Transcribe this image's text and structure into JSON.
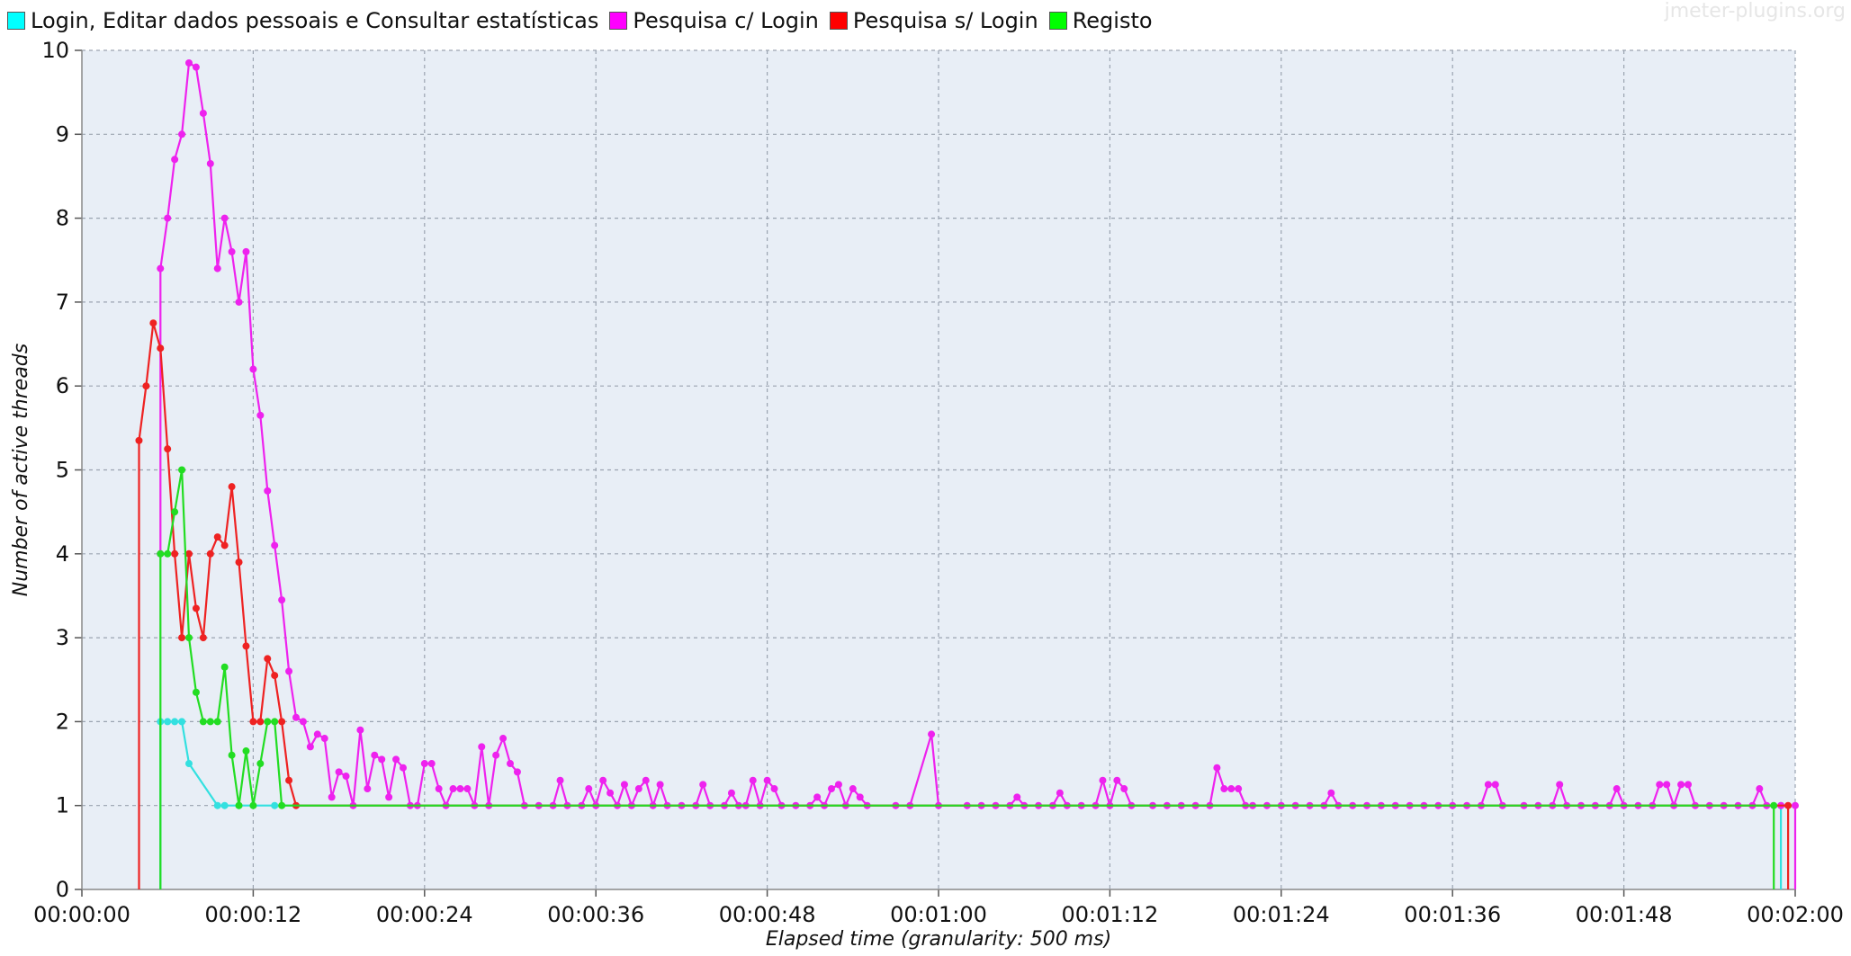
{
  "watermark": "jmeter-plugins.org",
  "colors": {
    "plot_background": "#e8eef6",
    "grid": "#9aa3b0",
    "axis": "#888888"
  },
  "chart_data": {
    "type": "line",
    "xlabel": "Elapsed time (granularity: 500 ms)",
    "ylabel": "Number of active threads",
    "xlim": [
      0,
      120
    ],
    "ylim": [
      0,
      10
    ],
    "x_unit": "seconds",
    "x_ticks": [
      0,
      12,
      24,
      36,
      48,
      60,
      72,
      84,
      96,
      108,
      120
    ],
    "x_tick_labels": [
      "00:00:00",
      "00:00:12",
      "00:00:24",
      "00:00:36",
      "00:00:48",
      "00:01:00",
      "00:01:12",
      "00:01:24",
      "00:01:36",
      "00:01:48",
      "00:02:00"
    ],
    "y_ticks": [
      0,
      1,
      2,
      3,
      4,
      5,
      6,
      7,
      8,
      9,
      10
    ],
    "grid": true,
    "legend_position": "top-left",
    "series": [
      {
        "name": "Login, Editar dados pessoais e Consultar estatísticas",
        "color": "#00ffff",
        "line_color": "#33e0e0",
        "points": [
          [
            5.5,
            0
          ],
          [
            5.5,
            2
          ],
          [
            6,
            2
          ],
          [
            6.5,
            2
          ],
          [
            7,
            2
          ],
          [
            7.5,
            1.5
          ],
          [
            9.5,
            1
          ],
          [
            10,
            1
          ],
          [
            11,
            1
          ],
          [
            13.5,
            1
          ],
          [
            119,
            1
          ],
          [
            119,
            0
          ]
        ]
      },
      {
        "name": "Pesquisa c/ Login",
        "color": "#ff00ff",
        "line_color": "#ee22ee",
        "points": [
          [
            5.5,
            4
          ],
          [
            5.5,
            7.4
          ],
          [
            6,
            8
          ],
          [
            6.5,
            8.7
          ],
          [
            7,
            9
          ],
          [
            7.5,
            9.85
          ],
          [
            8,
            9.8
          ],
          [
            8.5,
            9.25
          ],
          [
            9,
            8.65
          ],
          [
            9.5,
            7.4
          ],
          [
            10,
            8
          ],
          [
            10.5,
            7.6
          ],
          [
            11,
            7
          ],
          [
            11.5,
            7.6
          ],
          [
            12,
            6.2
          ],
          [
            12.5,
            5.65
          ],
          [
            13,
            4.75
          ],
          [
            13.5,
            4.1
          ],
          [
            14,
            3.45
          ],
          [
            14.5,
            2.6
          ],
          [
            15,
            2.05
          ],
          [
            15.5,
            2
          ],
          [
            16,
            1.7
          ],
          [
            16.5,
            1.85
          ],
          [
            17,
            1.8
          ],
          [
            17.5,
            1.1
          ],
          [
            18,
            1.4
          ],
          [
            18.5,
            1.35
          ],
          [
            19,
            1
          ],
          [
            19.5,
            1.9
          ],
          [
            20,
            1.2
          ],
          [
            20.5,
            1.6
          ],
          [
            21,
            1.55
          ],
          [
            21.5,
            1.1
          ],
          [
            22,
            1.55
          ],
          [
            22.5,
            1.45
          ],
          [
            23,
            1
          ],
          [
            23.5,
            1
          ],
          [
            24,
            1.5
          ],
          [
            24.5,
            1.5
          ],
          [
            25,
            1.2
          ],
          [
            25.5,
            1
          ],
          [
            26,
            1.2
          ],
          [
            26.5,
            1.2
          ],
          [
            27,
            1.2
          ],
          [
            27.5,
            1
          ],
          [
            28,
            1.7
          ],
          [
            28.5,
            1
          ],
          [
            29,
            1.6
          ],
          [
            29.5,
            1.8
          ],
          [
            30,
            1.5
          ],
          [
            30.5,
            1.4
          ],
          [
            31,
            1
          ],
          [
            32,
            1
          ],
          [
            33,
            1
          ],
          [
            33.5,
            1.3
          ],
          [
            34,
            1
          ],
          [
            35,
            1
          ],
          [
            35.5,
            1.2
          ],
          [
            36,
            1
          ],
          [
            36.5,
            1.3
          ],
          [
            37,
            1.15
          ],
          [
            37.5,
            1
          ],
          [
            38,
            1.25
          ],
          [
            38.5,
            1
          ],
          [
            39,
            1.2
          ],
          [
            39.5,
            1.3
          ],
          [
            40,
            1
          ],
          [
            40.5,
            1.25
          ],
          [
            41,
            1
          ],
          [
            42,
            1
          ],
          [
            43,
            1
          ],
          [
            43.5,
            1.25
          ],
          [
            44,
            1
          ],
          [
            45,
            1
          ],
          [
            45.5,
            1.15
          ],
          [
            46,
            1
          ],
          [
            46.5,
            1
          ],
          [
            47,
            1.3
          ],
          [
            47.5,
            1
          ],
          [
            48,
            1.3
          ],
          [
            48.5,
            1.2
          ],
          [
            49,
            1
          ],
          [
            50,
            1
          ],
          [
            51,
            1
          ],
          [
            51.5,
            1.1
          ],
          [
            52,
            1
          ],
          [
            52.5,
            1.2
          ],
          [
            53,
            1.25
          ],
          [
            53.5,
            1
          ],
          [
            54,
            1.2
          ],
          [
            54.5,
            1.1
          ],
          [
            55,
            1
          ],
          [
            57,
            1
          ],
          [
            58,
            1
          ],
          [
            59.5,
            1.85
          ],
          [
            60,
            1
          ],
          [
            62,
            1
          ],
          [
            63,
            1
          ],
          [
            64,
            1
          ],
          [
            65,
            1
          ],
          [
            65.5,
            1.1
          ],
          [
            66,
            1
          ],
          [
            67,
            1
          ],
          [
            68,
            1
          ],
          [
            68.5,
            1.15
          ],
          [
            69,
            1
          ],
          [
            70,
            1
          ],
          [
            71,
            1
          ],
          [
            71.5,
            1.3
          ],
          [
            72,
            1
          ],
          [
            72.5,
            1.3
          ],
          [
            73,
            1.2
          ],
          [
            73.5,
            1
          ],
          [
            75,
            1
          ],
          [
            76,
            1
          ],
          [
            77,
            1
          ],
          [
            78,
            1
          ],
          [
            79,
            1
          ],
          [
            79.5,
            1.45
          ],
          [
            80,
            1.2
          ],
          [
            80.5,
            1.2
          ],
          [
            81,
            1.2
          ],
          [
            81.5,
            1
          ],
          [
            82,
            1
          ],
          [
            83,
            1
          ],
          [
            84,
            1
          ],
          [
            85,
            1
          ],
          [
            86,
            1
          ],
          [
            87,
            1
          ],
          [
            87.5,
            1.15
          ],
          [
            88,
            1
          ],
          [
            89,
            1
          ],
          [
            90,
            1
          ],
          [
            91,
            1
          ],
          [
            92,
            1
          ],
          [
            93,
            1
          ],
          [
            94,
            1
          ],
          [
            95,
            1
          ],
          [
            96,
            1
          ],
          [
            97,
            1
          ],
          [
            98,
            1
          ],
          [
            98.5,
            1.25
          ],
          [
            99,
            1.25
          ],
          [
            99.5,
            1
          ],
          [
            101,
            1
          ],
          [
            102,
            1
          ],
          [
            103,
            1
          ],
          [
            103.5,
            1.25
          ],
          [
            104,
            1
          ],
          [
            105,
            1
          ],
          [
            106,
            1
          ],
          [
            107,
            1
          ],
          [
            107.5,
            1.2
          ],
          [
            108,
            1
          ],
          [
            109,
            1
          ],
          [
            110,
            1
          ],
          [
            110.5,
            1.25
          ],
          [
            111,
            1.25
          ],
          [
            111.5,
            1
          ],
          [
            112,
            1.25
          ],
          [
            112.5,
            1.25
          ],
          [
            113,
            1
          ],
          [
            114,
            1
          ],
          [
            115,
            1
          ],
          [
            116,
            1
          ],
          [
            117,
            1
          ],
          [
            117.5,
            1.2
          ],
          [
            118,
            1
          ],
          [
            119,
            1
          ],
          [
            120,
            1
          ],
          [
            120,
            0
          ]
        ]
      },
      {
        "name": "Pesquisa s/ Login",
        "color": "#ff0000",
        "line_color": "#ee2222",
        "points": [
          [
            4,
            0
          ],
          [
            4,
            5.35
          ],
          [
            4.5,
            6
          ],
          [
            5,
            6.75
          ],
          [
            5.5,
            6.45
          ],
          [
            6,
            5.25
          ],
          [
            6.5,
            4
          ],
          [
            7,
            3
          ],
          [
            7.5,
            4
          ],
          [
            8,
            3.35
          ],
          [
            8.5,
            3
          ],
          [
            9,
            4
          ],
          [
            9.5,
            4.2
          ],
          [
            10,
            4.1
          ],
          [
            10.5,
            4.8
          ],
          [
            11,
            3.9
          ],
          [
            11.5,
            2.9
          ],
          [
            12,
            2
          ],
          [
            12.5,
            2
          ],
          [
            13,
            2.75
          ],
          [
            13.5,
            2.55
          ],
          [
            14,
            2
          ],
          [
            14.5,
            1.3
          ],
          [
            15,
            1
          ],
          [
            119.5,
            1
          ],
          [
            119.5,
            0
          ]
        ]
      },
      {
        "name": "Registo",
        "color": "#00ff00",
        "line_color": "#22dd22",
        "points": [
          [
            5.5,
            0
          ],
          [
            5.5,
            4
          ],
          [
            6,
            4
          ],
          [
            6.5,
            4.5
          ],
          [
            7,
            5
          ],
          [
            7.5,
            3
          ],
          [
            8,
            2.35
          ],
          [
            8.5,
            2
          ],
          [
            9,
            2
          ],
          [
            9.5,
            2
          ],
          [
            10,
            2.65
          ],
          [
            10.5,
            1.6
          ],
          [
            11,
            1
          ],
          [
            11.5,
            1.65
          ],
          [
            12,
            1
          ],
          [
            12.5,
            1.5
          ],
          [
            13,
            2
          ],
          [
            13.5,
            2
          ],
          [
            14,
            1
          ],
          [
            118.5,
            1
          ],
          [
            118.5,
            0
          ]
        ]
      }
    ]
  }
}
